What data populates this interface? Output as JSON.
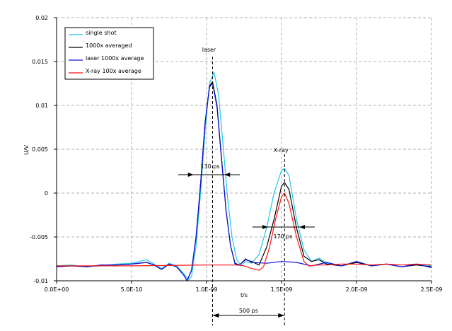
{
  "chart_data": {
    "type": "line",
    "title": "",
    "xlabel": "t/s",
    "ylabel": "U/V",
    "xlim": [
      0,
      2.5e-09
    ],
    "ylim": [
      -0.01,
      0.02
    ],
    "grid": true,
    "legend_position": "top-left",
    "x_ticks": [
      0,
      5e-10,
      1e-09,
      1.5e-09,
      2e-09,
      2.5e-09
    ],
    "x_tick_labels": [
      "0.0E+00",
      "5.0E-10",
      "1.0E-09",
      "1.5E-09",
      "2.0E-09",
      "2.5E-09"
    ],
    "y_ticks": [
      0.02,
      0.015,
      0.01,
      0.005,
      0,
      -0.005,
      -0.01
    ],
    "y_tick_labels": [
      "0.02",
      "0.015",
      "0.01",
      "0.005",
      "0",
      "-0.005",
      "-0.01"
    ],
    "x_unit_ns": true,
    "series": [
      {
        "name": "single shot",
        "color": "#22c8e8",
        "x": [
          0,
          0.1,
          0.2,
          0.3,
          0.4,
          0.5,
          0.6,
          0.65,
          0.7,
          0.75,
          0.8,
          0.85,
          0.88,
          0.9,
          0.93,
          0.96,
          0.99,
          1.02,
          1.05,
          1.08,
          1.11,
          1.14,
          1.17,
          1.2,
          1.23,
          1.26,
          1.3,
          1.35,
          1.4,
          1.45,
          1.5,
          1.52,
          1.55,
          1.6,
          1.65,
          1.7,
          1.75,
          1.8,
          1.9,
          2.0,
          2.1,
          2.2,
          2.3,
          2.4,
          2.5
        ],
        "y": [
          -0.0083,
          -0.0082,
          -0.0084,
          -0.0083,
          -0.0081,
          -0.008,
          -0.0076,
          -0.0081,
          -0.0086,
          -0.008,
          -0.0083,
          -0.0092,
          -0.0099,
          -0.0095,
          -0.006,
          0.0,
          0.007,
          0.0125,
          0.0138,
          0.0112,
          0.0055,
          -0.0005,
          -0.005,
          -0.0075,
          -0.0083,
          -0.0078,
          -0.008,
          -0.007,
          -0.004,
          0.0,
          0.0026,
          0.0028,
          0.002,
          -0.003,
          -0.0065,
          -0.0078,
          -0.0074,
          -0.008,
          -0.0083,
          -0.0078,
          -0.0083,
          -0.0081,
          -0.0084,
          -0.0081,
          -0.0083
        ]
      },
      {
        "name": "1000x averaged",
        "color": "#000000",
        "x": [
          0,
          0.1,
          0.2,
          0.3,
          0.4,
          0.5,
          0.6,
          0.65,
          0.7,
          0.75,
          0.8,
          0.85,
          0.87,
          0.9,
          0.93,
          0.96,
          0.99,
          1.02,
          1.04,
          1.07,
          1.1,
          1.13,
          1.16,
          1.19,
          1.22,
          1.26,
          1.3,
          1.35,
          1.4,
          1.45,
          1.5,
          1.52,
          1.55,
          1.6,
          1.65,
          1.7,
          1.75,
          1.8,
          1.9,
          2.0,
          2.1,
          2.2,
          2.3,
          2.4,
          2.5
        ],
        "y": [
          -0.0084,
          -0.0083,
          -0.0084,
          -0.0082,
          -0.0082,
          -0.0081,
          -0.0079,
          -0.0082,
          -0.0087,
          -0.0081,
          -0.0084,
          -0.0094,
          -0.01,
          -0.0088,
          -0.005,
          0.001,
          0.008,
          0.0122,
          0.0127,
          0.01,
          0.004,
          -0.002,
          -0.006,
          -0.008,
          -0.0082,
          -0.0076,
          -0.0078,
          -0.0082,
          -0.0062,
          -0.003,
          0.0008,
          0.0012,
          0.0004,
          -0.004,
          -0.0072,
          -0.0078,
          -0.0076,
          -0.0081,
          -0.0083,
          -0.0079,
          -0.0083,
          -0.0081,
          -0.0084,
          -0.0082,
          -0.0084
        ]
      },
      {
        "name": "laser 1000x average",
        "color": "#1010e0",
        "x": [
          0,
          0.1,
          0.2,
          0.3,
          0.4,
          0.5,
          0.6,
          0.65,
          0.7,
          0.75,
          0.8,
          0.85,
          0.87,
          0.9,
          0.93,
          0.96,
          0.99,
          1.02,
          1.04,
          1.07,
          1.1,
          1.13,
          1.16,
          1.19,
          1.22,
          1.26,
          1.3,
          1.4,
          1.5,
          1.6,
          1.7,
          1.8,
          1.9,
          2.0,
          2.1,
          2.2,
          2.3,
          2.4,
          2.5
        ],
        "y": [
          -0.0084,
          -0.0083,
          -0.0084,
          -0.0082,
          -0.0082,
          -0.0081,
          -0.0079,
          -0.0082,
          -0.0087,
          -0.0081,
          -0.0084,
          -0.0094,
          -0.01,
          -0.0088,
          -0.005,
          0.001,
          0.008,
          0.0121,
          0.0125,
          0.0098,
          0.0038,
          -0.002,
          -0.006,
          -0.0081,
          -0.0082,
          -0.0075,
          -0.0079,
          -0.008,
          -0.0078,
          -0.0079,
          -0.0083,
          -0.0079,
          -0.0083,
          -0.0078,
          -0.0083,
          -0.0081,
          -0.0084,
          -0.0081,
          -0.0085
        ]
      },
      {
        "name": "X-ray 100x average",
        "color": "#ff1010",
        "x": [
          0,
          0.5,
          1.0,
          1.2,
          1.25,
          1.3,
          1.35,
          1.38,
          1.42,
          1.46,
          1.5,
          1.52,
          1.55,
          1.6,
          1.65,
          1.68,
          1.75,
          1.8,
          1.9,
          2.0,
          2.1,
          2.2,
          2.3,
          2.4,
          2.5
        ],
        "y": [
          -0.0083,
          -0.0083,
          -0.0082,
          -0.0082,
          -0.0083,
          -0.0086,
          -0.0088,
          -0.0084,
          -0.0062,
          -0.003,
          -0.0004,
          0.0,
          -0.0012,
          -0.005,
          -0.0078,
          -0.0083,
          -0.0082,
          -0.0082,
          -0.0081,
          -0.0081,
          -0.0082,
          -0.0081,
          -0.0082,
          -0.0081,
          -0.0082
        ]
      }
    ],
    "annotations": {
      "laser_label": "laser",
      "xray_label": "X-ray",
      "laser_fwhm": "130 ps",
      "xray_fwhm": "170 ps",
      "separation": "500 ps",
      "laser_peak_ns": 1.04,
      "xray_peak_ns": 1.52
    }
  }
}
